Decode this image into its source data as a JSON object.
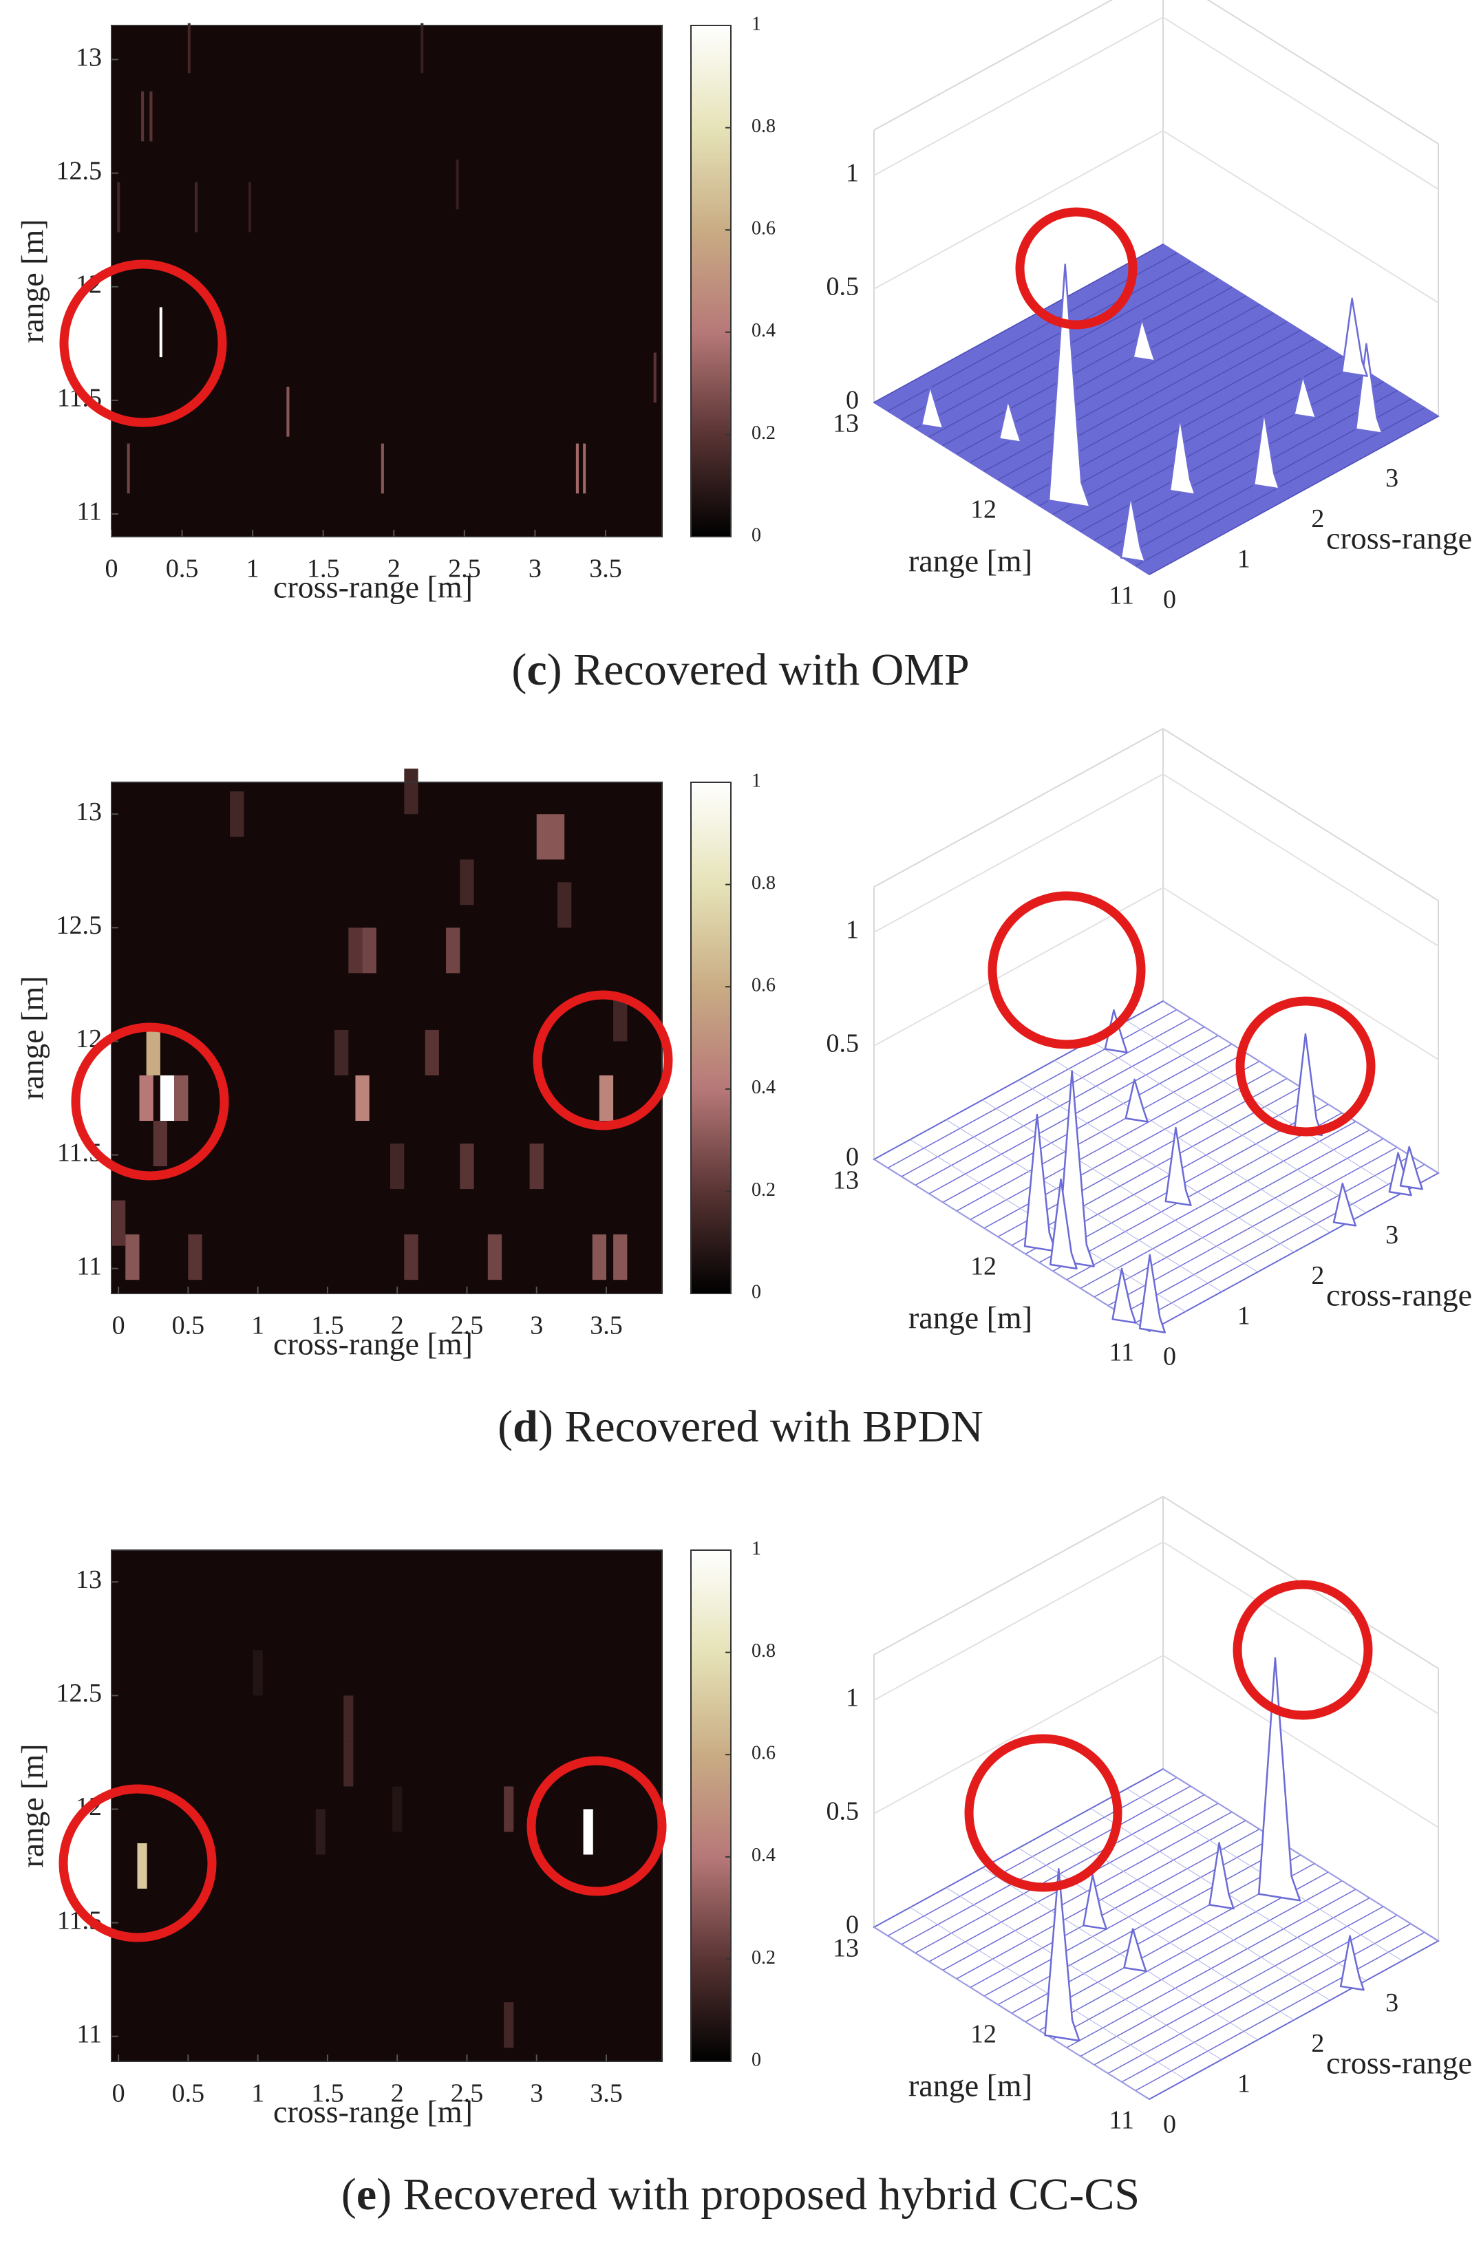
{
  "chart_data": [
    {
      "type": "heatmap",
      "xlabel": "cross-range [m]",
      "ylabel": "range [m]",
      "xlim": [
        0,
        3.9
      ],
      "ylim": [
        10.9,
        13.15
      ],
      "xticks": [
        0,
        0.5,
        1,
        1.5,
        2,
        2.5,
        3,
        3.5
      ],
      "yticks": [
        11,
        11.5,
        12,
        12.5,
        13
      ],
      "clim": [
        0,
        1
      ],
      "cticks": [
        0,
        0.2,
        0.4,
        0.6,
        0.8,
        1
      ],
      "cell_width": 0.02,
      "cell_height": 0.22,
      "cells": [
        {
          "x": 0.55,
          "y": 13.05,
          "v": 0.15
        },
        {
          "x": 2.2,
          "y": 13.05,
          "v": 0.12
        },
        {
          "x": 0.22,
          "y": 12.75,
          "v": 0.2
        },
        {
          "x": 0.28,
          "y": 12.75,
          "v": 0.2
        },
        {
          "x": 2.45,
          "y": 12.45,
          "v": 0.12
        },
        {
          "x": 0.05,
          "y": 12.35,
          "v": 0.15
        },
        {
          "x": 0.6,
          "y": 12.35,
          "v": 0.15
        },
        {
          "x": 0.98,
          "y": 12.35,
          "v": 0.12
        },
        {
          "x": 0.35,
          "y": 11.8,
          "v": 1
        },
        {
          "x": 3.85,
          "y": 11.6,
          "v": 0.2
        },
        {
          "x": 1.25,
          "y": 11.45,
          "v": 0.3
        },
        {
          "x": 0.12,
          "y": 11.2,
          "v": 0.25
        },
        {
          "x": 1.92,
          "y": 11.2,
          "v": 0.3
        },
        {
          "x": 3.3,
          "y": 11.2,
          "v": 0.35
        },
        {
          "x": 3.35,
          "y": 11.2,
          "v": 0.35
        }
      ]
    },
    {
      "type": "surface3d",
      "xlabel": "cross-range [m]",
      "ylabel": "range [m]",
      "xlim": [
        0,
        3.9
      ],
      "ylim": [
        11,
        13
      ],
      "zlim": [
        0,
        1.2
      ],
      "xticks": [
        0,
        1,
        2,
        3
      ],
      "yticks": [
        11,
        12,
        13
      ],
      "zticks": [
        0,
        0.5,
        1
      ],
      "filled": true,
      "color": "#6b6bd6",
      "peaks": [
        {
          "x": 0.35,
          "y": 11.8,
          "z": 1
        },
        {
          "x": 3.3,
          "y": 11.2,
          "z": 0.35
        },
        {
          "x": 3.85,
          "y": 11.6,
          "z": 0.3
        },
        {
          "x": 1.25,
          "y": 11.45,
          "z": 0.3
        },
        {
          "x": 0.12,
          "y": 11.2,
          "z": 0.25
        },
        {
          "x": 1.92,
          "y": 11.2,
          "z": 0.3
        },
        {
          "x": 0.6,
          "y": 12.35,
          "z": 0.15
        },
        {
          "x": 0.2,
          "y": 12.7,
          "z": 0.15
        },
        {
          "x": 2.5,
          "y": 12.4,
          "z": 0.15
        },
        {
          "x": 3,
          "y": 11.5,
          "z": 0.15
        }
      ]
    },
    {
      "type": "heatmap",
      "xlabel": "cross-range [m]",
      "ylabel": "range [m]",
      "xlim": [
        -0.05,
        3.9
      ],
      "ylim": [
        10.89,
        13.14
      ],
      "xticks": [
        0,
        0.5,
        1,
        1.5,
        2,
        2.5,
        3,
        3.5
      ],
      "yticks": [
        11,
        11.5,
        12,
        12.5,
        13
      ],
      "clim": [
        0,
        1
      ],
      "cticks": [
        0,
        0.2,
        0.4,
        0.6,
        0.8,
        1
      ],
      "cell_width": 0.1,
      "cell_height": 0.2,
      "cells": [
        {
          "x": 0.25,
          "y": 11.95,
          "v": 0.6
        },
        {
          "x": 0.35,
          "y": 11.75,
          "v": 1
        },
        {
          "x": 0.2,
          "y": 11.75,
          "v": 0.4
        },
        {
          "x": 0.45,
          "y": 11.75,
          "v": 0.3
        },
        {
          "x": 1.75,
          "y": 11.75,
          "v": 0.45
        },
        {
          "x": 3.5,
          "y": 11.75,
          "v": 0.45
        },
        {
          "x": 2.4,
          "y": 12.4,
          "v": 0.25
        },
        {
          "x": 1.7,
          "y": 12.4,
          "v": 0.2
        },
        {
          "x": 1.8,
          "y": 12.4,
          "v": 0.25
        },
        {
          "x": 3.05,
          "y": 12.9,
          "v": 0.3
        },
        {
          "x": 3.15,
          "y": 12.9,
          "v": 0.3
        },
        {
          "x": 0.85,
          "y": 13,
          "v": 0.15
        },
        {
          "x": 2.1,
          "y": 13.1,
          "v": 0.15
        },
        {
          "x": 0.3,
          "y": 11.55,
          "v": 0.2
        },
        {
          "x": 0.1,
          "y": 11.05,
          "v": 0.3
        },
        {
          "x": 0.55,
          "y": 11.05,
          "v": 0.2
        },
        {
          "x": 2.1,
          "y": 11.05,
          "v": 0.2
        },
        {
          "x": 2.7,
          "y": 11.05,
          "v": 0.25
        },
        {
          "x": 3.45,
          "y": 11.05,
          "v": 0.3
        },
        {
          "x": 3.6,
          "y": 11.05,
          "v": 0.3
        },
        {
          "x": 1.6,
          "y": 11.95,
          "v": 0.15
        },
        {
          "x": 2.25,
          "y": 11.95,
          "v": 0.2
        },
        {
          "x": 3.6,
          "y": 12.1,
          "v": 0.15
        },
        {
          "x": 2.5,
          "y": 11.45,
          "v": 0.2
        },
        {
          "x": 2,
          "y": 11.45,
          "v": 0.15
        },
        {
          "x": 3,
          "y": 11.45,
          "v": 0.2
        },
        {
          "x": 0,
          "y": 11.2,
          "v": 0.2
        },
        {
          "x": 2.5,
          "y": 12.7,
          "v": 0.15
        },
        {
          "x": 3.2,
          "y": 12.6,
          "v": 0.15
        }
      ]
    },
    {
      "type": "surface3d",
      "xlabel": "cross-range [m]",
      "ylabel": "range [m]",
      "xlim": [
        0,
        3.9
      ],
      "ylim": [
        11,
        13
      ],
      "zlim": [
        0,
        1.2
      ],
      "xticks": [
        0,
        1,
        2,
        3
      ],
      "yticks": [
        11,
        12,
        13
      ],
      "zticks": [
        0,
        0.5,
        1
      ],
      "filled": false,
      "color": "#6b6bd6",
      "peaks": [
        {
          "x": 0.35,
          "y": 11.75,
          "z": 0.8
        },
        {
          "x": 0.25,
          "y": 11.95,
          "z": 0.55
        },
        {
          "x": 3.5,
          "y": 11.75,
          "z": 0.4
        },
        {
          "x": 1.75,
          "y": 11.75,
          "z": 0.3
        },
        {
          "x": 0.1,
          "y": 11.05,
          "z": 0.3
        },
        {
          "x": 0.2,
          "y": 11.75,
          "z": 0.35
        },
        {
          "x": 2.7,
          "y": 11.05,
          "z": 0.15
        },
        {
          "x": 3.45,
          "y": 11.05,
          "z": 0.15
        },
        {
          "x": 3.6,
          "y": 11.05,
          "z": 0.15
        },
        {
          "x": 2.4,
          "y": 12.4,
          "z": 0.15
        },
        {
          "x": 3.05,
          "y": 12.9,
          "z": 0.15
        },
        {
          "x": 0,
          "y": 11.2,
          "z": 0.2
        }
      ]
    },
    {
      "type": "heatmap",
      "xlabel": "cross-range [m]",
      "ylabel": "range [m]",
      "xlim": [
        -0.05,
        3.9
      ],
      "ylim": [
        10.89,
        13.14
      ],
      "xticks": [
        0,
        0.5,
        1,
        1.5,
        2,
        2.5,
        3,
        3.5
      ],
      "yticks": [
        11,
        11.5,
        12,
        12.5,
        13
      ],
      "clim": [
        0,
        1
      ],
      "cticks": [
        0,
        0.2,
        0.4,
        0.6,
        0.8,
        1
      ],
      "cell_width": 0.07,
      "cell_height": 0.2,
      "cells": [
        {
          "x": 0.17,
          "y": 11.75,
          "v": 0.7
        },
        {
          "x": 3.37,
          "y": 11.9,
          "v": 1
        },
        {
          "x": 1.65,
          "y": 12.4,
          "v": 0.15
        },
        {
          "x": 1.65,
          "y": 12.2,
          "v": 0.15
        },
        {
          "x": 2.8,
          "y": 12,
          "v": 0.2
        },
        {
          "x": 1.45,
          "y": 11.9,
          "v": 0.1
        },
        {
          "x": 2.8,
          "y": 11.05,
          "v": 0.15
        },
        {
          "x": 2,
          "y": 12,
          "v": 0.08
        },
        {
          "x": 1,
          "y": 12.6,
          "v": 0.08
        }
      ]
    },
    {
      "type": "surface3d",
      "xlabel": "cross-range [m]",
      "ylabel": "range [m]",
      "xlim": [
        0,
        3.9
      ],
      "ylim": [
        11,
        13
      ],
      "zlim": [
        0,
        1.2
      ],
      "xticks": [
        0,
        1,
        2,
        3
      ],
      "yticks": [
        11,
        12,
        13
      ],
      "zticks": [
        0,
        0.5,
        1
      ],
      "filled": false,
      "color": "#6b6bd6",
      "peaks": [
        {
          "x": 3.37,
          "y": 11.9,
          "z": 1
        },
        {
          "x": 0.17,
          "y": 11.75,
          "z": 0.7
        },
        {
          "x": 1.65,
          "y": 12.3,
          "z": 0.2
        },
        {
          "x": 2.8,
          "y": 12,
          "z": 0.25
        },
        {
          "x": 2.8,
          "y": 11.05,
          "z": 0.2
        },
        {
          "x": 1.45,
          "y": 11.9,
          "z": 0.15
        }
      ]
    }
  ],
  "captions": [
    [
      "(",
      "c",
      ") Recovered with OMP"
    ],
    [
      "(",
      "d",
      ") Recovered with BPDN"
    ],
    [
      "(",
      "e",
      ") Recovered with proposed hybrid CC-CS"
    ]
  ]
}
